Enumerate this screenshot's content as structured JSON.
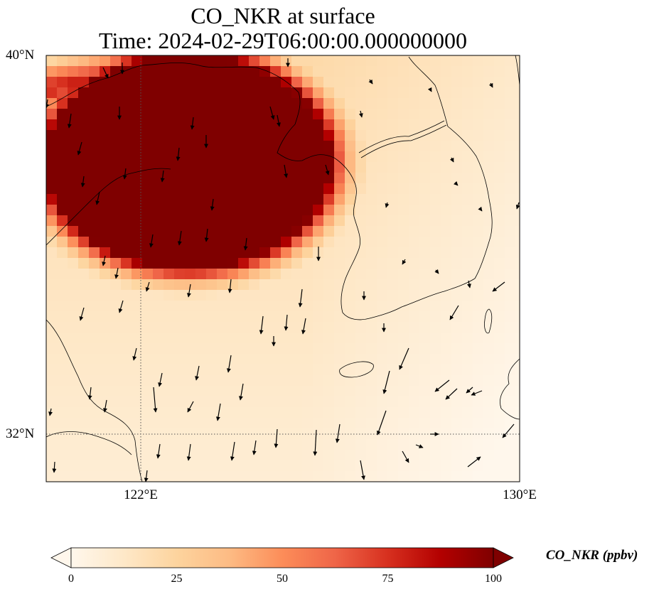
{
  "title": {
    "line1": "CO_NKR at surface",
    "line2": "Time: 2024-02-29T06:00:00.000000000"
  },
  "map": {
    "variable": "CO_NKR",
    "level": "surface",
    "lat_range": [
      31.0,
      40.0
    ],
    "lon_range": [
      120.0,
      130.0
    ],
    "lat_ticks": [
      {
        "value": 40,
        "label": "40°N"
      },
      {
        "value": 32,
        "label": "32°N"
      }
    ],
    "lon_ticks": [
      {
        "value": 122,
        "label": "122°E"
      },
      {
        "value": 130,
        "label": "130°E"
      }
    ],
    "gridlines": "dotted",
    "colormap": "OrRd",
    "overlays": [
      "coastlines",
      "wind-vectors"
    ]
  },
  "colorbar": {
    "label": "CO_NKR (ppbv)",
    "min": 0,
    "max": 100,
    "ticks": [
      0,
      25,
      50,
      75,
      100
    ],
    "extend": "both",
    "colors": [
      "#fff7ec",
      "#fee8c8",
      "#fdd49e",
      "#fdbb84",
      "#fc8d59",
      "#ef6548",
      "#d7301f",
      "#b30000",
      "#7f0000"
    ]
  }
}
